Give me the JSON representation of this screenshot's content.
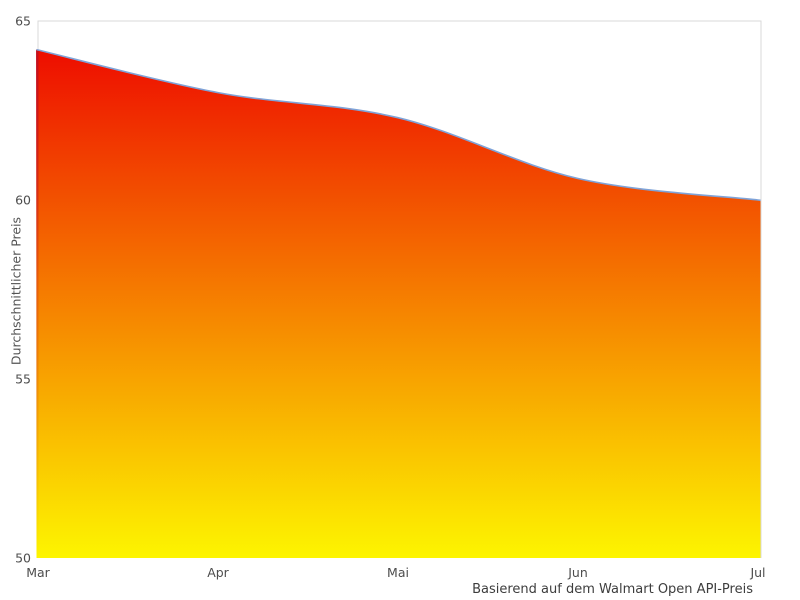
{
  "chart_data": {
    "type": "area",
    "categories": [
      "Mar",
      "Apr",
      "Mai",
      "Jun",
      "Jul"
    ],
    "values": [
      64.2,
      63.0,
      62.3,
      60.6,
      60.0
    ],
    "title": "",
    "xlabel": "",
    "ylabel": "Durchschnittlicher Preis",
    "caption": "Basierend auf dem Walmart Open API-Preis",
    "ylim": [
      50,
      65
    ],
    "yticks": [
      65,
      60,
      55,
      50
    ],
    "grid": false,
    "legend": "none",
    "layout_hints": {
      "smoothing": "spline",
      "fill": "vertical gradient red to yellow over area bounding box",
      "plot_border_sides": "left, top, right"
    },
    "colors": {
      "gradient_top": "#ee0d00",
      "gradient_bottom": "#fdf500",
      "line": "#7fa3d8",
      "area_left_edge": "#c01020",
      "plot_border": "#d9d9d9",
      "tick_text": "#4d4d4d",
      "axis_title_text": "#545454",
      "caption_text": "#3d3d3d",
      "background": "#ffffff"
    }
  }
}
